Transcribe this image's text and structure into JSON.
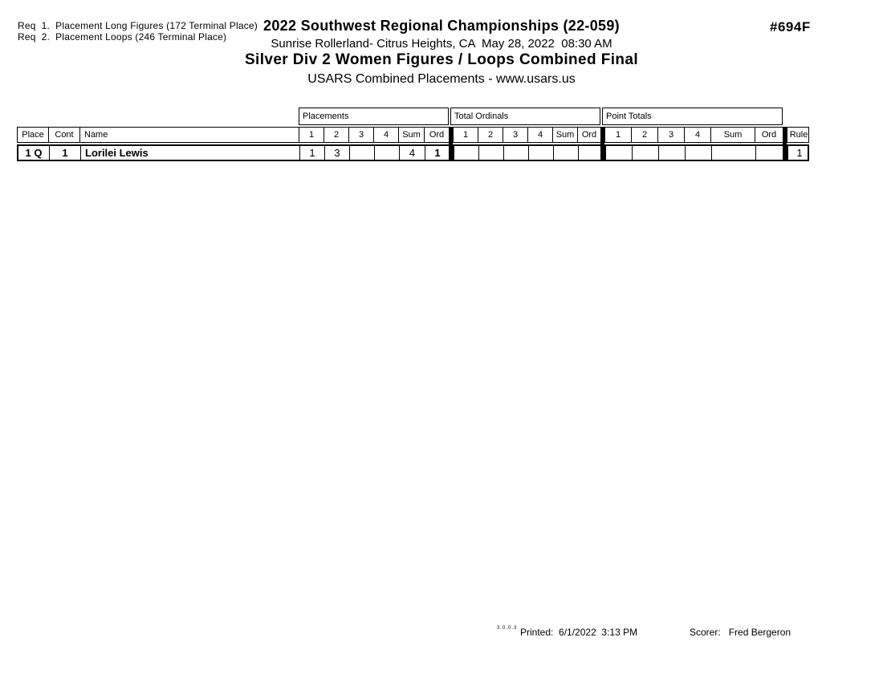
{
  "report": {
    "req_lines": [
      "Req  1.  Placement Long Figures (172 Terminal Place)",
      "Req  2.  Placement Loops (246 Terminal Place)"
    ],
    "title": "2022 Southwest Regional Championships (22-059)",
    "venue_datetime": "Sunrise Rollerland- Citrus Heights, CA  May 28, 2022  08:30 AM",
    "event_title": "Silver Div 2 Women Figures / Loops Combined Final",
    "subtitle": "USARS Combined Placements - www.usars.us",
    "event_number": "#694F"
  },
  "table": {
    "group_headers": [
      "Placements",
      "Total Ordinals",
      "Point Totals"
    ],
    "columns": [
      "Place",
      "Cont",
      "Name"
    ],
    "sub_columns": [
      "1",
      "2",
      "3",
      "4",
      "Sum",
      "Ord"
    ],
    "rule_header": "Rule",
    "rows": [
      {
        "place": "1 Q",
        "cont": "1",
        "name": "Lorilei Lewis",
        "placements": [
          "1",
          "3",
          "",
          "",
          "4",
          "1"
        ],
        "total_ordinals": [
          "",
          "",
          "",
          "",
          "",
          ""
        ],
        "point_totals": [
          "",
          "",
          "",
          "",
          "",
          ""
        ],
        "rule": "1"
      }
    ]
  },
  "footer": {
    "version_mark": "3.0.0.3",
    "printed_label": "Printed:",
    "printed_datetime": "6/1/2022  3:13 PM",
    "scorer_label": "Scorer:",
    "scorer_name": "Fred Bergeron"
  }
}
